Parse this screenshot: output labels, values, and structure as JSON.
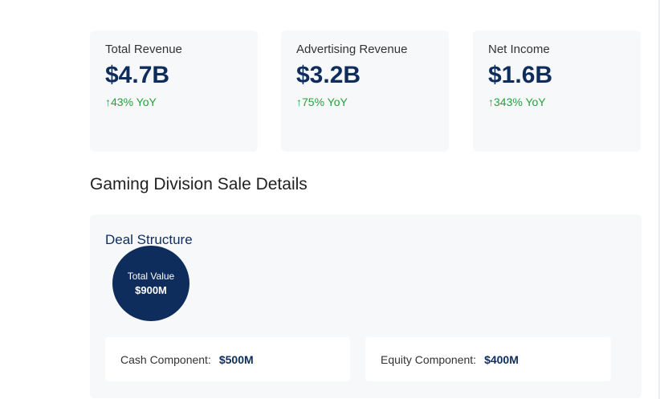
{
  "metrics": [
    {
      "label": "Total Revenue",
      "value": "$4.7B",
      "change": "↑43% YoY"
    },
    {
      "label": "Advertising Revenue",
      "value": "$3.2B",
      "change": "↑75% YoY"
    },
    {
      "label": "Net Income",
      "value": "$1.6B",
      "change": "↑343% YoY"
    }
  ],
  "section": {
    "title": "Gaming Division Sale Details"
  },
  "deal": {
    "title": "Deal Structure",
    "total_label": "Total Value",
    "total_value": "$900M",
    "cash_label": "Cash Component:",
    "cash_value": "$500M",
    "equity_label": "Equity Component:",
    "equity_value": "$400M"
  },
  "colors": {
    "accent": "#0f2d5c",
    "positive": "#22a33a",
    "card_bg": "#f6f8fa"
  }
}
